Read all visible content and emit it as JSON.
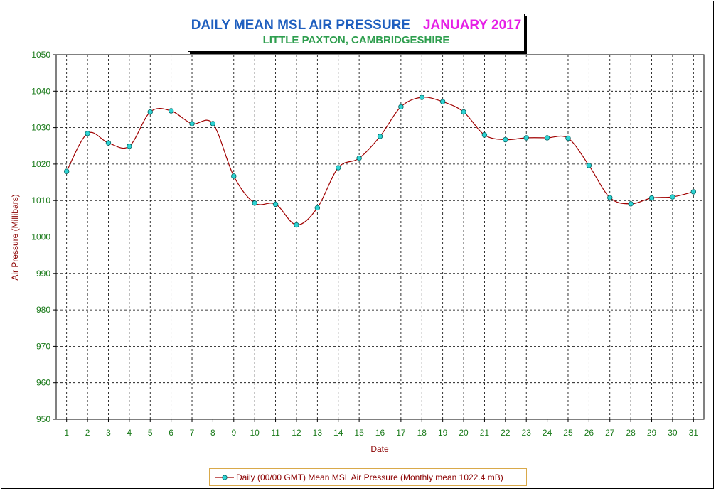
{
  "title": {
    "main": "DAILY MEAN MSL AIR PRESSURE",
    "month": "JANUARY 2017",
    "subtitle": "LITTLE PAXTON, CAMBRIDGESHIRE"
  },
  "chart_data": {
    "type": "line",
    "xlabel": "Date",
    "ylabel": "Air Pressure (Millibars)",
    "ylim": [
      950,
      1050
    ],
    "ytick_step": 10,
    "grid": true,
    "legend_position": "bottom-center",
    "categories": [
      "1",
      "2",
      "3",
      "4",
      "5",
      "6",
      "7",
      "8",
      "9",
      "10",
      "11",
      "12",
      "13",
      "14",
      "15",
      "16",
      "17",
      "18",
      "19",
      "20",
      "21",
      "22",
      "23",
      "24",
      "25",
      "26",
      "27",
      "28",
      "29",
      "30",
      "31"
    ],
    "series": [
      {
        "name": "Daily (00/00 GMT) Mean MSL Air Pressure (Monthly mean 1022.4 mB)",
        "values": [
          1018.0,
          1028.4,
          1025.8,
          1024.9,
          1034.3,
          1034.6,
          1031.1,
          1031.1,
          1016.7,
          1009.3,
          1009.0,
          1003.3,
          1008.0,
          1019.0,
          1021.6,
          1027.6,
          1035.7,
          1038.3,
          1037.1,
          1034.3,
          1028.0,
          1026.7,
          1027.2,
          1027.2,
          1027.1,
          1019.6,
          1010.8,
          1009.1,
          1010.7,
          1011.0,
          1012.4
        ],
        "line_color": "#a00000",
        "marker_color": "#2fd3d3"
      }
    ]
  },
  "colors": {
    "tick_labels": "#1a7a1a",
    "axis_titles": "#8b0000",
    "grid": "#000000"
  }
}
